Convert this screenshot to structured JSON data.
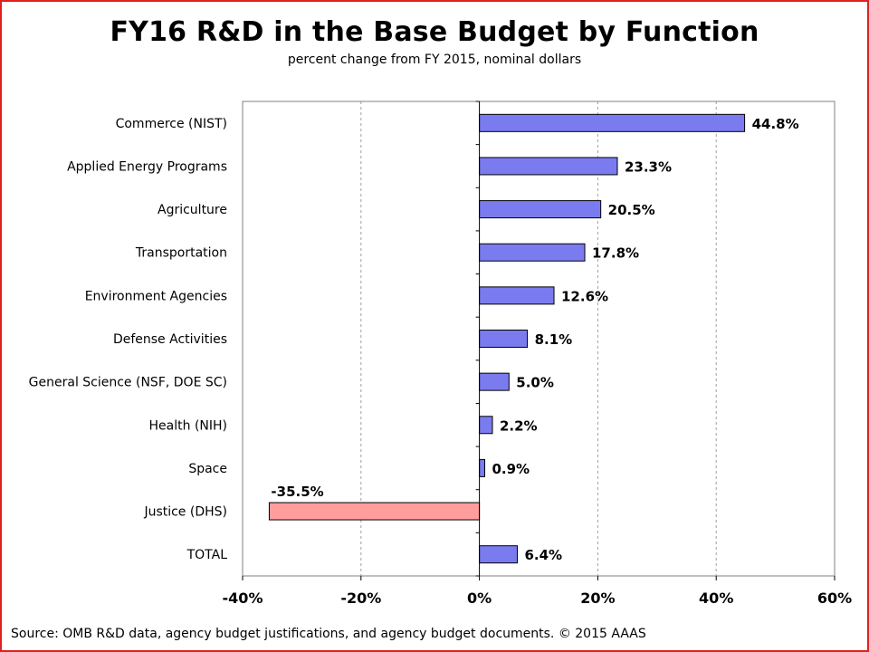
{
  "chart_data": {
    "type": "bar",
    "orientation": "horizontal",
    "title": "FY16 R&D in the Base Budget by Function",
    "subtitle": "percent change from FY 2015, nominal dollars",
    "categories": [
      "Commerce (NIST)",
      "Applied Energy Programs",
      "Agriculture",
      "Transportation",
      "Environment Agencies",
      "Defense Activities",
      "General Science (NSF, DOE SC)",
      "Health (NIH)",
      "Space",
      "Justice (DHS)",
      "TOTAL"
    ],
    "values": [
      44.8,
      23.3,
      20.5,
      17.8,
      12.6,
      8.1,
      5.0,
      2.2,
      0.9,
      -35.5,
      6.4
    ],
    "data_labels": [
      "44.8%",
      "23.3%",
      "20.5%",
      "17.8%",
      "12.6%",
      "8.1%",
      "5.0%",
      "2.2%",
      "0.9%",
      "-35.5%",
      "6.4%"
    ],
    "xlim": [
      -40,
      60
    ],
    "xticks": [
      -40,
      -20,
      0,
      20,
      40,
      60
    ],
    "xtick_labels": [
      "-40%",
      "-20%",
      "0%",
      "20%",
      "40%",
      "60%"
    ],
    "grid": "vertical dashed",
    "colors": {
      "positive": "#7b7bf0",
      "negative": "#ff9d9d",
      "bar_border": "#000000",
      "grid": "#a0a0a0",
      "frame": "#e02020"
    }
  },
  "source": "Source: OMB R&D data, agency budget justifications, and agency budget documents. © 2015 AAAS"
}
